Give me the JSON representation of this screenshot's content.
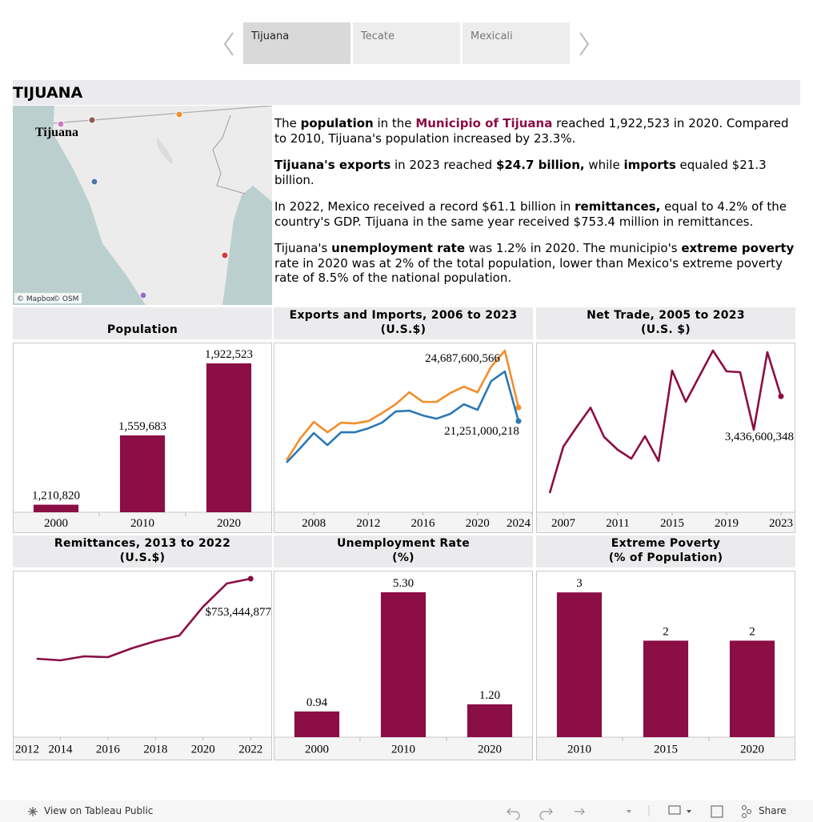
{
  "tabs": [
    "Tijuana",
    "Tecate",
    "Mexicali"
  ],
  "selected_tab": 0,
  "heading": "TIJUANA",
  "map": {
    "label": "Tijuana",
    "attribution": [
      "© Mapbox",
      "© OSM"
    ]
  },
  "story": [
    [
      {
        "text": "The "
      },
      {
        "text": "population",
        "bold": true
      },
      {
        "text": " in the "
      },
      {
        "text": "Municipio of Tijuana",
        "bold": true,
        "color": "#8b0e45"
      },
      {
        "text": " reached 1,922,523 in 2020. Compared to 2010, Tijuana's population increased by 23.3%."
      }
    ],
    [
      {
        "text": "Tijuana's exports",
        "bold": true
      },
      {
        "text": " in 2023 reached "
      },
      {
        "text": "$24.7 billion,",
        "bold": true
      },
      {
        "text": " while "
      },
      {
        "text": "imports",
        "bold": true
      },
      {
        "text": " equaled $21.3 billion."
      }
    ],
    [
      {
        "text": "In 2022, Mexico received a record $61.1 billion in "
      },
      {
        "text": "remittances,",
        "bold": true
      },
      {
        "text": " equal to 4.2% of the country's GDP. Tijuana in the same year received $753.4 million in remittances."
      }
    ],
    [
      {
        "text": "Tijuana's "
      },
      {
        "text": "unemployment rate",
        "bold": true
      },
      {
        "text": " was 1.2% in 2020. The municipio's "
      },
      {
        "text": "extreme poverty",
        "bold": true
      },
      {
        "text": " rate in 2020 was at 2% of the total population, lower than Mexico's extreme poverty rate of 8.5% of the national population."
      }
    ]
  ],
  "chart_data": [
    {
      "type": "bar",
      "title": "Population",
      "categories": [
        "2000",
        "2010",
        "2020"
      ],
      "values": [
        1210820,
        1559683,
        1922523
      ],
      "value_labels": [
        "1,210,820",
        "1,559,683",
        "1,922,523"
      ],
      "color": "#8b0e45",
      "ylim": [
        1172700,
        2027300
      ]
    },
    {
      "type": "line",
      "title": "Exports and Imports, 2006 to 2023\n(U.S.$)",
      "x": [
        2006,
        2007,
        2008,
        2009,
        2010,
        2011,
        2012,
        2013,
        2014,
        2015,
        2016,
        2017,
        2018,
        2019,
        2020,
        2021,
        2022,
        2023
      ],
      "series": [
        {
          "color": "#f28e2b",
          "values": [
            11340000000,
            16800000000,
            21050000000,
            18420000000,
            20850000000,
            20650000000,
            21250000000,
            23270000000,
            25500000000,
            28530000000,
            26100000000,
            26100000000,
            28330000000,
            29950000000,
            28530000000,
            35000000000,
            39050000000,
            24687600566
          ],
          "value_labels": [
            null,
            null,
            null,
            null,
            null,
            null,
            null,
            null,
            null,
            null,
            null,
            null,
            null,
            null,
            null,
            null,
            null,
            "24,687,600,566"
          ]
        },
        {
          "color": "#2a78b5",
          "values": [
            10740000000,
            14380000000,
            18220000000,
            15190000000,
            18420000000,
            18420000000,
            19430000000,
            20850000000,
            23680000000,
            23880000000,
            22670000000,
            21860000000,
            23070000000,
            25500000000,
            24080000000,
            31360000000,
            33790000000,
            21251000218
          ],
          "value_labels": [
            null,
            null,
            null,
            null,
            null,
            null,
            null,
            null,
            null,
            null,
            null,
            null,
            null,
            null,
            null,
            null,
            null,
            "21,251,000,218"
          ]
        }
      ],
      "xlim": [
        2005.06,
        2024.06
      ],
      "xticks": [
        2008,
        2012,
        2016,
        2020,
        2024
      ],
      "ylim": [
        -1800000000,
        41100000000
      ]
    },
    {
      "type": "line",
      "title": "Net Trade, 2005 to 2023\n(U.S. $)",
      "x": [
        2006,
        2007,
        2008,
        2009,
        2010,
        2011,
        2012,
        2013,
        2014,
        2015,
        2016,
        2017,
        2018,
        2019,
        2020,
        2021,
        2022,
        2023
      ],
      "series": [
        {
          "color": "#8b0e45",
          "values": [
            -190000000,
            1550000000,
            2300000000,
            3010000000,
            1910000000,
            1430000000,
            1100000000,
            1940000000,
            1010000000,
            4400000000,
            3230000000,
            4190000000,
            5150000000,
            4370000000,
            4340000000,
            2180000000,
            5090000000,
            3436600348
          ],
          "value_labels": [
            null,
            null,
            null,
            null,
            null,
            null,
            null,
            null,
            null,
            null,
            null,
            null,
            null,
            null,
            null,
            null,
            null,
            "3,436,600,348"
          ]
        }
      ],
      "xlim": [
        2005,
        2024.06
      ],
      "xticks": [
        2007,
        2011,
        2015,
        2019,
        2023
      ],
      "ylim": [
        -910000000,
        5450000000
      ]
    },
    {
      "type": "line",
      "title": "Remittances, 2013 to 2022\n(U.S.$)",
      "x": [
        2013,
        2014,
        2015,
        2016,
        2017,
        2018,
        2019,
        2020,
        2021,
        2022
      ],
      "series": [
        {
          "color": "#8b0e45",
          "values": [
            372900000,
            365300000,
            384300000,
            380500000,
            422400000,
            456600000,
            483200000,
            620200000,
            730600000,
            753444877
          ],
          "value_labels": [
            null,
            null,
            null,
            null,
            null,
            null,
            null,
            null,
            null,
            "$753,444,877"
          ]
        }
      ],
      "xlim": [
        2012,
        2022.9
      ],
      "xticks": [
        2012,
        2014,
        2016,
        2018,
        2020,
        2022
      ],
      "ylim": [
        0,
        791500000
      ]
    },
    {
      "type": "bar",
      "title": "Unemployment Rate\n(%)",
      "categories": [
        "2000",
        "2010",
        "2020"
      ],
      "values": [
        0.94,
        5.3,
        1.2
      ],
      "value_labels": [
        "0.94",
        "5.30",
        "1.20"
      ],
      "color": "#8b0e45",
      "ylim": [
        0,
        6.09
      ]
    },
    {
      "type": "bar",
      "title": "Extreme Poverty\n(% of Population)",
      "categories": [
        "2010",
        "2015",
        "2020"
      ],
      "values": [
        3,
        2,
        2
      ],
      "color": "#8b0e45",
      "ylim": [
        0,
        3.45
      ]
    }
  ],
  "footer": {
    "link": "View on Tableau Public",
    "share": "Share"
  }
}
